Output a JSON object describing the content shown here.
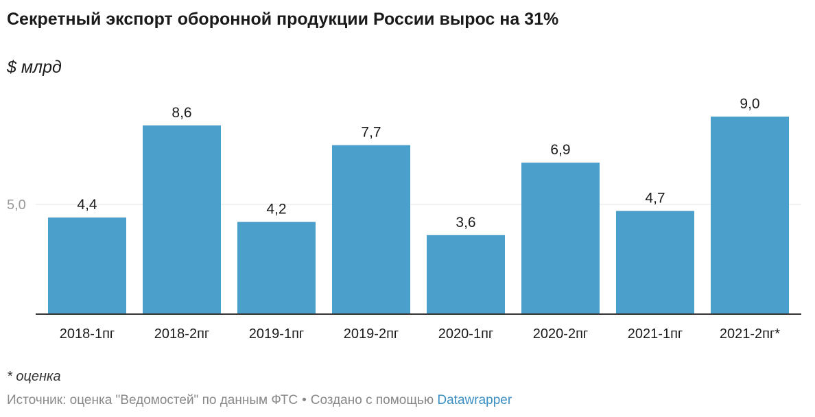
{
  "header": {
    "title": "Секретный экспорт оборонной продукции России вырос на 31%",
    "unit": "$ млрд"
  },
  "footer": {
    "note": "* оценка",
    "source": "Источник: оценка \"Ведомостей\" по данным ФТС",
    "separator": "•",
    "created_with": "Создано с помощью",
    "tool_link": "Datawrapper"
  },
  "colors": {
    "bar": "#4b9fcb",
    "gridline": "#e4e4e4",
    "axis": "#333333",
    "tick_label": "#999999"
  },
  "chart_data": {
    "type": "bar",
    "categories": [
      "2018-1пг",
      "2018-2пг",
      "2019-1пг",
      "2019-2пг",
      "2020-1пг",
      "2020-2пг",
      "2021-1пг",
      "2021-2пг*"
    ],
    "values": [
      4.4,
      8.6,
      4.2,
      7.7,
      3.6,
      6.9,
      4.7,
      9.0
    ],
    "value_labels": [
      "4,4",
      "8,6",
      "4,2",
      "7,7",
      "3,6",
      "6,9",
      "4,7",
      "9,0"
    ],
    "ylim": [
      0,
      10
    ],
    "yticks": [
      {
        "value": 5,
        "label": "5,0"
      }
    ],
    "grid": true,
    "legend": "none"
  }
}
